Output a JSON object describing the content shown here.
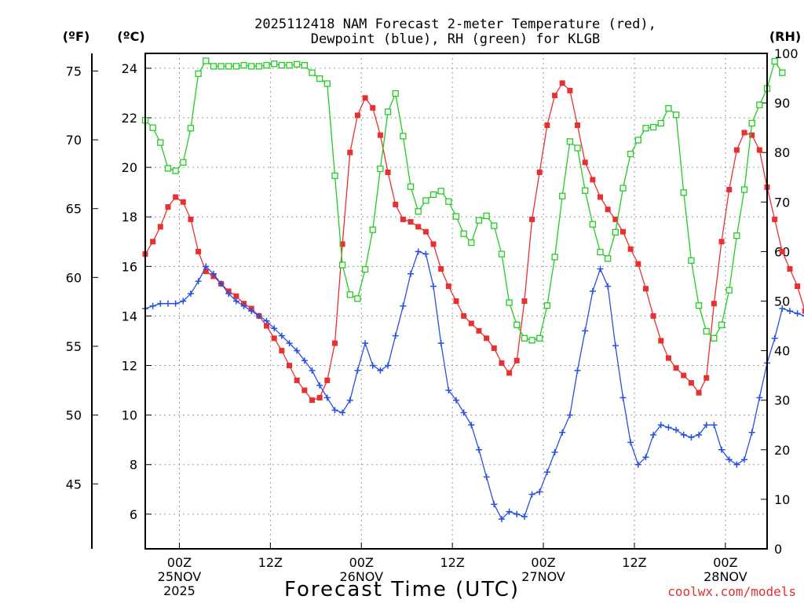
{
  "chart_data": {
    "type": "line",
    "title_lines": [
      "2025112418 NAM Forecast 2-meter Temperature (red),",
      "Dewpoint (blue), RH (green) for KLGB"
    ],
    "xlabel": "Forecast Time (UTC)",
    "credit": "coolwx.com/models",
    "units": {
      "fahrenheit": "(ºF)",
      "celsius": "(ºC)",
      "rh": "(RH)"
    },
    "x_hour_range": [
      -4.5,
      77.5
    ],
    "celsius_range": [
      4.6,
      24.6
    ],
    "rh_range": [
      0,
      100
    ],
    "celsius_ticks": [
      6,
      8,
      10,
      12,
      14,
      16,
      18,
      20,
      22,
      24
    ],
    "fahrenheit_ticks": [
      45,
      50,
      55,
      60,
      65,
      70,
      75
    ],
    "rh_ticks": [
      0,
      10,
      20,
      30,
      40,
      50,
      60,
      70,
      80,
      90,
      100
    ],
    "x_ticks": [
      {
        "hour": 0,
        "lines": [
          "00Z",
          "25NOV",
          "2025"
        ]
      },
      {
        "hour": 12,
        "lines": [
          "12Z"
        ]
      },
      {
        "hour": 24,
        "lines": [
          "00Z",
          "26NOV"
        ]
      },
      {
        "hour": 36,
        "lines": [
          "12Z"
        ]
      },
      {
        "hour": 48,
        "lines": [
          "00Z",
          "27NOV"
        ]
      },
      {
        "hour": 60,
        "lines": [
          "12Z"
        ]
      },
      {
        "hour": 72,
        "lines": [
          "00Z",
          "28NOV"
        ]
      }
    ],
    "series": [
      {
        "name": "2-meter Temperature (°C)",
        "color": "#e83030",
        "marker": "filled-square",
        "axis": "celsius",
        "values": [
          16.5,
          17.0,
          17.6,
          18.4,
          18.8,
          18.6,
          17.9,
          16.6,
          15.8,
          15.6,
          15.3,
          15.0,
          14.8,
          14.5,
          14.3,
          14.0,
          13.6,
          13.1,
          12.6,
          12.0,
          11.4,
          11.0,
          10.6,
          10.7,
          11.4,
          12.9,
          16.9,
          20.6,
          22.1,
          22.8,
          22.4,
          21.3,
          19.8,
          18.5,
          17.9,
          17.8,
          17.6,
          17.4,
          16.9,
          15.9,
          15.2,
          14.6,
          14.0,
          13.7,
          13.4,
          13.1,
          12.7,
          12.1,
          11.7,
          12.2,
          14.6,
          17.9,
          19.8,
          21.7,
          22.9,
          23.4,
          23.1,
          21.7,
          20.2,
          19.5,
          18.8,
          18.3,
          17.9,
          17.4,
          16.7,
          16.1,
          15.1,
          14.0,
          13.0,
          12.3,
          11.9,
          11.6,
          11.3,
          10.9,
          11.5,
          14.5,
          17.0,
          19.1,
          20.7,
          21.4,
          21.3,
          20.7,
          19.2,
          17.9,
          16.6,
          15.9,
          15.2,
          14.2,
          12.9
        ]
      },
      {
        "name": "Dewpoint (°C)",
        "color": "#2850e0",
        "marker": "plus",
        "axis": "celsius",
        "values": [
          14.3,
          14.4,
          14.5,
          14.5,
          14.5,
          14.6,
          14.9,
          15.4,
          16.0,
          15.7,
          15.3,
          14.9,
          14.6,
          14.4,
          14.2,
          14.0,
          13.8,
          13.5,
          13.2,
          12.9,
          12.6,
          12.2,
          11.8,
          11.2,
          10.7,
          10.2,
          10.1,
          10.6,
          11.8,
          12.9,
          12.0,
          11.8,
          12.0,
          13.2,
          14.4,
          15.7,
          16.6,
          16.5,
          15.2,
          12.9,
          11.0,
          10.6,
          10.1,
          9.6,
          8.6,
          7.5,
          6.4,
          5.8,
          6.1,
          6.0,
          5.9,
          6.8,
          6.9,
          7.7,
          8.5,
          9.3,
          10.0,
          11.8,
          13.4,
          15.0,
          15.9,
          15.2,
          12.8,
          10.7,
          8.9,
          8.0,
          8.3,
          9.2,
          9.6,
          9.5,
          9.4,
          9.2,
          9.1,
          9.2,
          9.6,
          9.6,
          8.6,
          8.2,
          8.0,
          8.2,
          9.3,
          10.7,
          12.1,
          13.1,
          14.3,
          14.2,
          14.1,
          14.0,
          12.8
        ]
      },
      {
        "name": "RH (%)",
        "color": "#22cc22",
        "marker": "open-square",
        "axis": "rh",
        "values": [
          86.5,
          85.0,
          82.0,
          76.8,
          76.3,
          78.0,
          84.9,
          95.9,
          98.5,
          97.4,
          97.4,
          97.4,
          97.4,
          97.6,
          97.4,
          97.4,
          97.6,
          97.9,
          97.6,
          97.6,
          97.8,
          97.6,
          96.1,
          94.9,
          93.9,
          75.3,
          57.3,
          51.3,
          50.5,
          56.4,
          64.4,
          76.7,
          88.2,
          91.9,
          83.3,
          73.1,
          68.1,
          70.3,
          71.5,
          72.2,
          70.1,
          67.1,
          63.6,
          61.8,
          66.3,
          67.2,
          65.2,
          59.5,
          49.7,
          45.2,
          42.5,
          42.1,
          42.5,
          49.1,
          58.9,
          71.2,
          82.2,
          80.9,
          72.3,
          65.5,
          59.9,
          58.6,
          63.9,
          72.8,
          79.7,
          82.5,
          84.9,
          85.1,
          85.9,
          88.9,
          87.6,
          71.9,
          58.2,
          49.1,
          43.9,
          42.5,
          45.2,
          52.2,
          63.2,
          72.5,
          85.9,
          89.6,
          92.9,
          98.4,
          96.1
        ]
      }
    ]
  }
}
